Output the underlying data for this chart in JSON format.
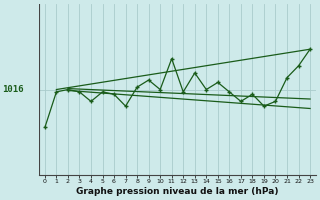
{
  "xlabel": "Graphe pression niveau de la mer (hPa)",
  "background_color": "#ceeaea",
  "grid_color": "#aacccc",
  "line_color": "#1a5c1a",
  "ylim": [
    998,
    1034
  ],
  "xlim": [
    -0.5,
    23.5
  ],
  "hline_y": 1016,
  "main_y": [
    1008,
    1015.5,
    1016,
    1015.5,
    1013.5,
    1015.5,
    1015,
    1012.5,
    1016.5,
    1018,
    1016,
    1022.5,
    1015.5,
    1019.5,
    1016,
    1017.5,
    1015.5,
    1013.5,
    1015,
    1012.5,
    1013.5,
    1018.5,
    1021,
    1024.5
  ],
  "trend1": {
    "x": [
      1,
      23
    ],
    "y": [
      1016.0,
      1024.5
    ]
  },
  "trend2": {
    "x": [
      2,
      23
    ],
    "y": [
      1016.2,
      1014.0
    ]
  },
  "trend3": {
    "x": [
      2,
      23
    ],
    "y": [
      1015.8,
      1012.0
    ]
  }
}
